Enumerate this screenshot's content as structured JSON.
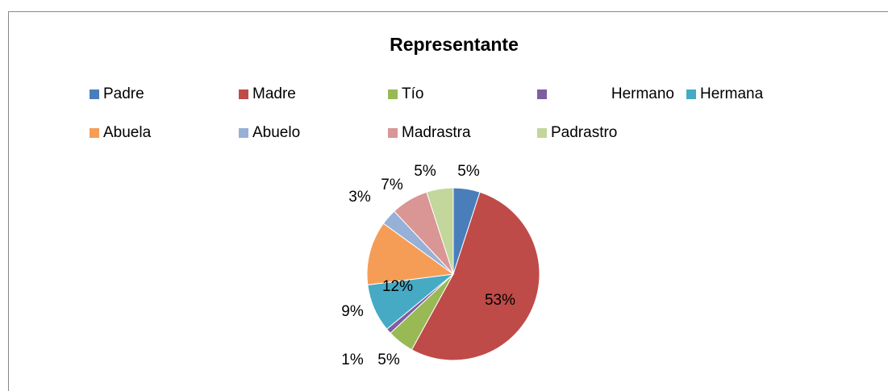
{
  "chart_data": {
    "type": "pie",
    "title": "Representante",
    "categories": [
      "Padre",
      "Madre",
      "Tío",
      "Hermano",
      "Hermana",
      "Abuela",
      "Abuelo",
      "Madrastra",
      "Padrastro"
    ],
    "values": [
      5,
      53,
      5,
      1,
      9,
      12,
      3,
      7,
      5
    ],
    "value_labels": [
      "5%",
      "53%",
      "5%",
      "1%",
      "9%",
      "12%",
      "3%",
      "7%",
      "5%"
    ],
    "colors": [
      "#4a7ebb",
      "#be4b48",
      "#98b954",
      "#7d5fa0",
      "#46aac5",
      "#f59d56",
      "#97b0d8",
      "#d99694",
      "#c3d69b"
    ],
    "legend": "top"
  }
}
